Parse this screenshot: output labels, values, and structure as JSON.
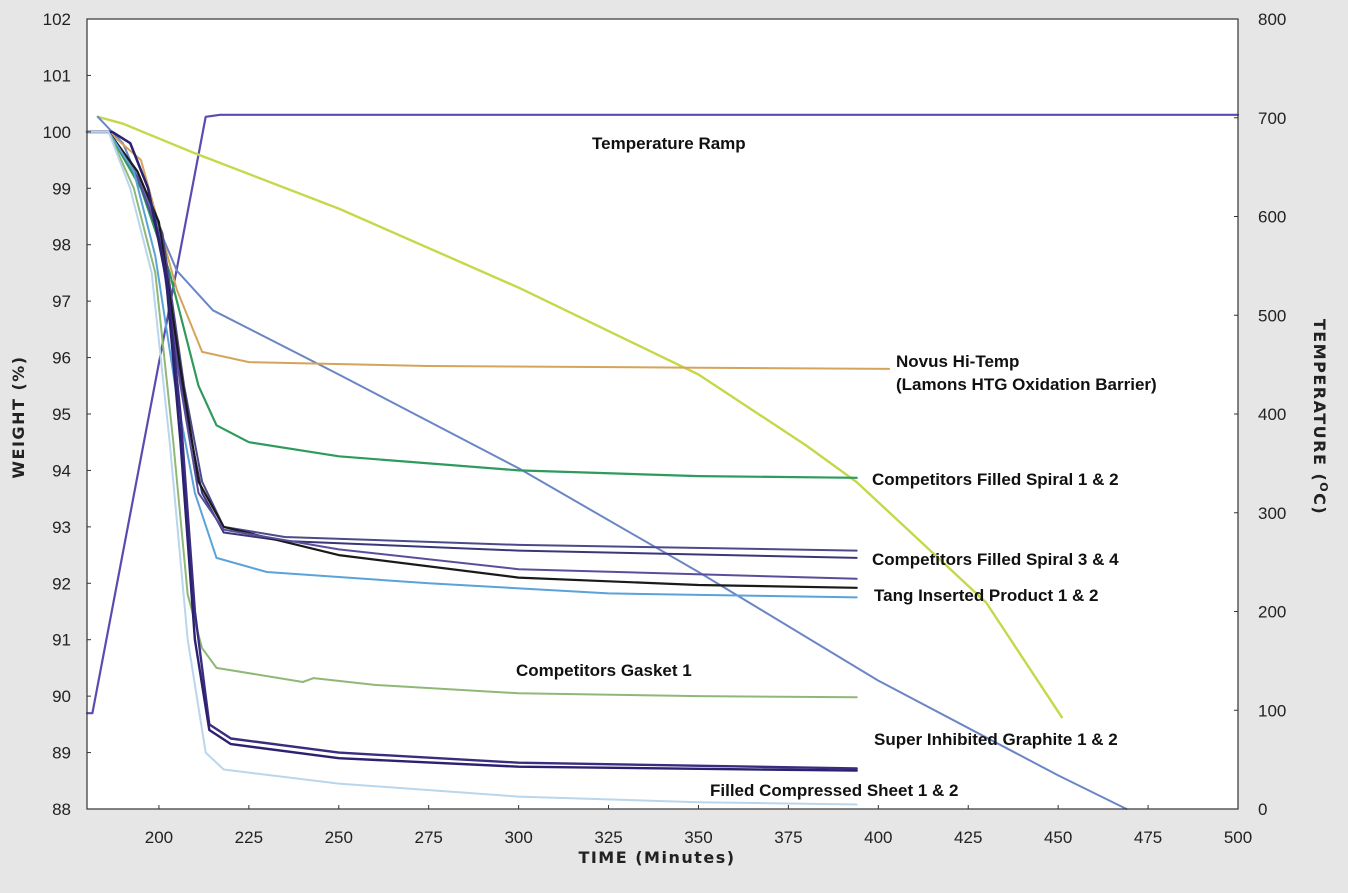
{
  "chart_data": {
    "type": "line",
    "xlabel": "TIME (Minutes)",
    "ylabel": "WEIGHT (%)",
    "y2label_main": "TEMPERATURE (",
    "y2label_sup": "O",
    "y2label_end": "C)",
    "xlim": [
      180,
      500
    ],
    "ylim": [
      88,
      102
    ],
    "y2lim": [
      0,
      800
    ],
    "x_ticks": [
      "200",
      "225",
      "250",
      "275",
      "300",
      "325",
      "350",
      "375",
      "400",
      "425",
      "450",
      "475",
      "500"
    ],
    "y_ticks": [
      "88",
      "89",
      "90",
      "91",
      "92",
      "93",
      "94",
      "95",
      "96",
      "97",
      "98",
      "99",
      "100",
      "101",
      "102"
    ],
    "y2_ticks": [
      "0",
      "100",
      "200",
      "300",
      "400",
      "500",
      "600",
      "700",
      "800"
    ],
    "grid": false,
    "series": [
      {
        "axis": "y2",
        "color": "#5b4bb0",
        "width": 2.2,
        "points": [
          [
            180,
            97
          ],
          [
            181.5,
            97
          ],
          [
            213,
            701
          ],
          [
            217,
            703
          ],
          [
            500,
            703
          ]
        ]
      },
      {
        "axis": "y2",
        "color": "#c6d84a",
        "width": 2.4,
        "points": [
          [
            183,
            701
          ],
          [
            190,
            694
          ],
          [
            210,
            664
          ],
          [
            250,
            608
          ],
          [
            300,
            528
          ],
          [
            350,
            440
          ],
          [
            380,
            368
          ],
          [
            394,
            331
          ],
          [
            430,
            209
          ],
          [
            451,
            93
          ]
        ]
      },
      {
        "axis": "y2",
        "color": "#6a86c4",
        "width": 2.0,
        "points": [
          [
            183,
            701
          ],
          [
            190,
            674
          ],
          [
            205,
            545
          ],
          [
            215,
            505
          ],
          [
            250,
            440
          ],
          [
            300,
            345
          ],
          [
            350,
            240
          ],
          [
            400,
            130
          ],
          [
            450,
            34
          ],
          [
            469,
            0
          ]
        ]
      },
      {
        "axis": "y",
        "color": "#d4a45a",
        "width": 2.0,
        "points": [
          [
            180,
            100
          ],
          [
            186,
            100
          ],
          [
            195,
            99.5
          ],
          [
            205,
            97.2
          ],
          [
            212,
            96.1
          ],
          [
            225,
            95.92
          ],
          [
            275,
            95.85
          ],
          [
            350,
            95.82
          ],
          [
            403,
            95.8
          ]
        ]
      },
      {
        "axis": "y",
        "color": "#2e9a5c",
        "width": 2.2,
        "points": [
          [
            180,
            100
          ],
          [
            186,
            100
          ],
          [
            195,
            99
          ],
          [
            203,
            97.5
          ],
          [
            211,
            95.5
          ],
          [
            216,
            94.8
          ],
          [
            225,
            94.5
          ],
          [
            250,
            94.25
          ],
          [
            300,
            94.0
          ],
          [
            350,
            93.9
          ],
          [
            394,
            93.87
          ]
        ]
      },
      {
        "axis": "y",
        "color": "#4c4a8a",
        "width": 2.0,
        "points": [
          [
            180,
            100
          ],
          [
            186,
            100
          ],
          [
            194,
            99.3
          ],
          [
            201,
            98.2
          ],
          [
            207,
            95.5
          ],
          [
            212,
            93.8
          ],
          [
            218,
            93
          ],
          [
            235,
            92.82
          ],
          [
            300,
            92.68
          ],
          [
            394,
            92.58
          ]
        ]
      },
      {
        "axis": "y",
        "color": "#3a3778",
        "width": 2.0,
        "points": [
          [
            180,
            100
          ],
          [
            186,
            100
          ],
          [
            194,
            99.2
          ],
          [
            201,
            98
          ],
          [
            207,
            95.2
          ],
          [
            212,
            93.6
          ],
          [
            218,
            92.9
          ],
          [
            235,
            92.75
          ],
          [
            300,
            92.58
          ],
          [
            394,
            92.45
          ]
        ]
      },
      {
        "axis": "y",
        "color": "#1a1a1a",
        "width": 2.2,
        "points": [
          [
            180,
            100
          ],
          [
            186,
            100
          ],
          [
            194,
            99.3
          ],
          [
            200,
            98.4
          ],
          [
            206,
            95.8
          ],
          [
            211,
            93.8
          ],
          [
            218,
            93.0
          ],
          [
            250,
            92.5
          ],
          [
            300,
            92.1
          ],
          [
            350,
            91.97
          ],
          [
            394,
            91.92
          ]
        ]
      },
      {
        "axis": "y",
        "color": "#5a4e9c",
        "width": 2.0,
        "points": [
          [
            180,
            100
          ],
          [
            186,
            100
          ],
          [
            194,
            99.2
          ],
          [
            200,
            98.2
          ],
          [
            206,
            95.5
          ],
          [
            211,
            93.6
          ],
          [
            218,
            92.95
          ],
          [
            250,
            92.6
          ],
          [
            300,
            92.25
          ],
          [
            394,
            92.08
          ]
        ]
      },
      {
        "axis": "y",
        "color": "#5aa3d8",
        "width": 2.0,
        "points": [
          [
            180,
            100
          ],
          [
            186,
            100
          ],
          [
            193,
            99.3
          ],
          [
            199,
            97.8
          ],
          [
            205,
            95.3
          ],
          [
            210,
            93.6
          ],
          [
            216,
            92.45
          ],
          [
            230,
            92.2
          ],
          [
            275,
            92.0
          ],
          [
            325,
            91.82
          ],
          [
            394,
            91.75
          ]
        ]
      },
      {
        "axis": "y",
        "color": "#8fb877",
        "width": 2.0,
        "points": [
          [
            180,
            100
          ],
          [
            186,
            100
          ],
          [
            193,
            99.0
          ],
          [
            199,
            97.5
          ],
          [
            204,
            94.5
          ],
          [
            208,
            91.8
          ],
          [
            212,
            90.85
          ],
          [
            216,
            90.5
          ],
          [
            240,
            90.25
          ],
          [
            243,
            90.32
          ],
          [
            260,
            90.2
          ],
          [
            300,
            90.05
          ],
          [
            350,
            90.0
          ],
          [
            394,
            89.98
          ]
        ]
      },
      {
        "axis": "y",
        "color": "#3a2c7e",
        "width": 2.4,
        "points": [
          [
            180,
            100
          ],
          [
            187,
            100
          ],
          [
            192,
            99.8
          ],
          [
            197,
            99.0
          ],
          [
            202,
            97.5
          ],
          [
            206,
            95
          ],
          [
            210,
            91.5
          ],
          [
            214,
            89.5
          ],
          [
            220,
            89.25
          ],
          [
            250,
            89.0
          ],
          [
            300,
            88.82
          ],
          [
            394,
            88.72
          ]
        ]
      },
      {
        "axis": "y",
        "color": "#2a2270",
        "width": 2.4,
        "points": [
          [
            180,
            100
          ],
          [
            187,
            100
          ],
          [
            192,
            99.8
          ],
          [
            197,
            99.0
          ],
          [
            202,
            97.4
          ],
          [
            206,
            94.5
          ],
          [
            210,
            91
          ],
          [
            214,
            89.4
          ],
          [
            220,
            89.15
          ],
          [
            250,
            88.9
          ],
          [
            300,
            88.75
          ],
          [
            394,
            88.68
          ]
        ]
      },
      {
        "axis": "y",
        "color": "#b8d6ee",
        "width": 2.0,
        "points": [
          [
            180,
            100
          ],
          [
            186,
            100
          ],
          [
            192,
            99
          ],
          [
            198,
            97.5
          ],
          [
            203,
            94.5
          ],
          [
            208,
            91
          ],
          [
            213,
            89
          ],
          [
            218,
            88.7
          ],
          [
            250,
            88.45
          ],
          [
            300,
            88.22
          ],
          [
            350,
            88.12
          ],
          [
            394,
            88.08
          ]
        ]
      }
    ],
    "annotations": [
      "Temperature Ramp",
      "Novus Hi-Temp",
      "(Lamons HTG Oxidation Barrier)",
      "Competitors Filled Spiral 1 & 2",
      "Competitors Filled Spiral 3 & 4",
      "Tang Inserted Product 1 & 2",
      "Competitors Gasket 1",
      "Super Inhibited Graphite 1 & 2",
      "Filled Compressed Sheet 1 & 2"
    ]
  }
}
